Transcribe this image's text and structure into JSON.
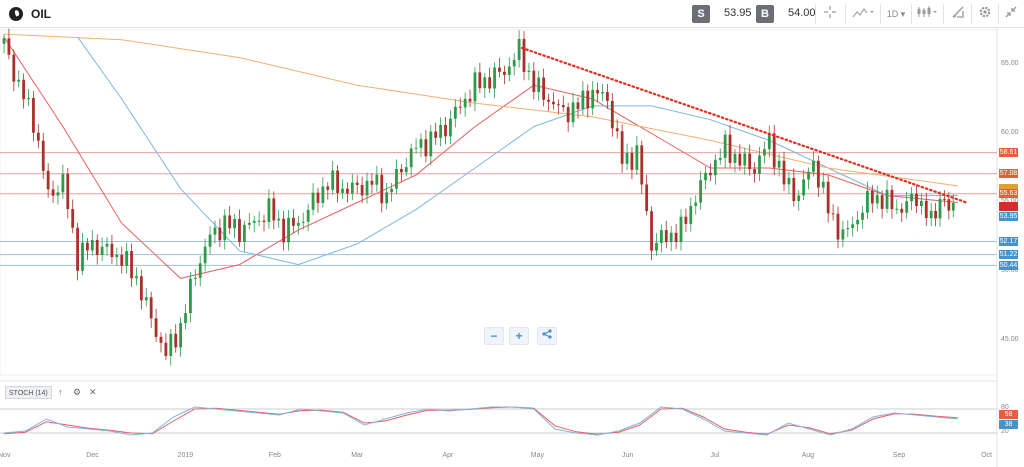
{
  "instrument": {
    "name": "OIL"
  },
  "toolbar": {
    "sell_label": "S",
    "sell_price": "53.95",
    "buy_label": "B",
    "buy_price": "54.00",
    "timeframe": "1D",
    "icons": [
      "crosshair-icon",
      "chart-type-icon",
      "timeframe-dropdown",
      "candlestick-icon",
      "drawing-tools-icon",
      "settings-icon",
      "collapse-icon"
    ]
  },
  "chart_data": {
    "type": "candlestick",
    "instrument": "OIL",
    "timeframe": "1D",
    "ylim": [
      42.5,
      67.5
    ],
    "y_ticks": [
      "65.00",
      "60.00",
      "55.00",
      "50.00",
      "45.00"
    ],
    "x_ticks": [
      "Nov",
      "Dec",
      "2019",
      "Feb",
      "Mar",
      "Apr",
      "May",
      "Jun",
      "Jul",
      "Aug",
      "Sep",
      "Oct"
    ],
    "x_tick_values": [
      0,
      30,
      61,
      92,
      120,
      151,
      181,
      212,
      242,
      273,
      304,
      334
    ],
    "current_price": 53.95,
    "horizontal_levels": [
      {
        "value": 58.61,
        "color": "#e8a0a0",
        "tag_color": "#e06040"
      },
      {
        "value": 57.08,
        "color": "#e8a0a0",
        "tag_color": "#e06040"
      },
      {
        "value": 55.63,
        "color": "#e8a0a0",
        "tag_color": "#e06040"
      },
      {
        "value": 52.17,
        "color": "#9fc3e0",
        "tag_color": "#4a90c9"
      },
      {
        "value": 51.22,
        "color": "#9fc3e0",
        "tag_color": "#4a90c9"
      },
      {
        "value": 50.44,
        "color": "#9fc3e0",
        "tag_color": "#4a90c9"
      }
    ],
    "price_tags": [
      {
        "value": 58.61,
        "label": "58.61",
        "color": "#e06040"
      },
      {
        "value": 57.08,
        "label": "57.08",
        "color": "#e06040"
      },
      {
        "value": 56.05,
        "label": "",
        "color": "#e0a030"
      },
      {
        "value": 55.63,
        "label": "55.63",
        "color": "#e06040"
      },
      {
        "value": 54.7,
        "label": "",
        "color": "#d0302a"
      },
      {
        "value": 53.95,
        "label": "53.95",
        "color": "#4a90c9"
      },
      {
        "value": 52.17,
        "label": "52.17",
        "color": "#4a90c9"
      },
      {
        "value": 51.22,
        "label": "51.22",
        "color": "#4a90c9"
      },
      {
        "value": 50.44,
        "label": "50.44",
        "color": "#4a90c9"
      }
    ],
    "trendline": {
      "from": {
        "x": 176,
        "y": 66.2
      },
      "to": {
        "x": 327,
        "y": 55.0
      },
      "color": "#e03020",
      "style": "dotted"
    },
    "candles_daily_close_approx": [
      {
        "x": 0,
        "y": 66.5
      },
      {
        "x": 5,
        "y": 63.5
      },
      {
        "x": 10,
        "y": 61.0
      },
      {
        "x": 15,
        "y": 55.5
      },
      {
        "x": 20,
        "y": 56.5
      },
      {
        "x": 25,
        "y": 51.0
      },
      {
        "x": 30,
        "y": 52.0
      },
      {
        "x": 35,
        "y": 51.5
      },
      {
        "x": 40,
        "y": 51.0
      },
      {
        "x": 45,
        "y": 49.5
      },
      {
        "x": 50,
        "y": 46.5
      },
      {
        "x": 55,
        "y": 44.0
      },
      {
        "x": 60,
        "y": 46.0
      },
      {
        "x": 65,
        "y": 50.0
      },
      {
        "x": 70,
        "y": 52.5
      },
      {
        "x": 75,
        "y": 53.5
      },
      {
        "x": 80,
        "y": 53.0
      },
      {
        "x": 85,
        "y": 53.5
      },
      {
        "x": 90,
        "y": 54.5
      },
      {
        "x": 95,
        "y": 53.0
      },
      {
        "x": 100,
        "y": 53.5
      },
      {
        "x": 105,
        "y": 55.0
      },
      {
        "x": 110,
        "y": 56.5
      },
      {
        "x": 115,
        "y": 56.0
      },
      {
        "x": 120,
        "y": 56.0
      },
      {
        "x": 125,
        "y": 56.5
      },
      {
        "x": 130,
        "y": 55.5
      },
      {
        "x": 135,
        "y": 57.5
      },
      {
        "x": 140,
        "y": 59.0
      },
      {
        "x": 145,
        "y": 59.5
      },
      {
        "x": 150,
        "y": 60.5
      },
      {
        "x": 155,
        "y": 62.0
      },
      {
        "x": 160,
        "y": 63.5
      },
      {
        "x": 165,
        "y": 64.0
      },
      {
        "x": 170,
        "y": 64.5
      },
      {
        "x": 175,
        "y": 66.0
      },
      {
        "x": 180,
        "y": 63.5
      },
      {
        "x": 185,
        "y": 62.5
      },
      {
        "x": 190,
        "y": 61.5
      },
      {
        "x": 195,
        "y": 62.0
      },
      {
        "x": 200,
        "y": 63.0
      },
      {
        "x": 205,
        "y": 62.5
      },
      {
        "x": 210,
        "y": 58.0
      },
      {
        "x": 215,
        "y": 58.5
      },
      {
        "x": 220,
        "y": 52.0
      },
      {
        "x": 225,
        "y": 52.5
      },
      {
        "x": 230,
        "y": 53.0
      },
      {
        "x": 235,
        "y": 55.5
      },
      {
        "x": 240,
        "y": 57.5
      },
      {
        "x": 245,
        "y": 59.0
      },
      {
        "x": 250,
        "y": 58.0
      },
      {
        "x": 255,
        "y": 57.5
      },
      {
        "x": 260,
        "y": 59.5
      },
      {
        "x": 265,
        "y": 56.5
      },
      {
        "x": 270,
        "y": 55.5
      },
      {
        "x": 275,
        "y": 58.0
      },
      {
        "x": 280,
        "y": 54.5
      },
      {
        "x": 285,
        "y": 52.5
      },
      {
        "x": 290,
        "y": 54.0
      },
      {
        "x": 295,
        "y": 55.5
      },
      {
        "x": 300,
        "y": 55.0
      },
      {
        "x": 305,
        "y": 54.5
      },
      {
        "x": 310,
        "y": 55.5
      },
      {
        "x": 315,
        "y": 53.5
      },
      {
        "x": 318,
        "y": 55.5
      },
      {
        "x": 321,
        "y": 54.5
      },
      {
        "x": 324,
        "y": 53.95
      }
    ],
    "series": [
      {
        "name": "",
        "color": "#e86060",
        "values_x": [
          0,
          20,
          40,
          60,
          80,
          100,
          120,
          140,
          160,
          180,
          200,
          220,
          240,
          260,
          280,
          300,
          324
        ],
        "values_y": [
          67,
          60.5,
          53.5,
          49.5,
          50.5,
          53.0,
          55.0,
          57.0,
          60.5,
          63.5,
          62.5,
          60.0,
          57.5,
          57.5,
          57.0,
          55.5,
          55.0
        ]
      },
      {
        "name": "",
        "color": "#7fb6e0",
        "values_x": [
          25,
          40,
          60,
          80,
          100,
          120,
          140,
          160,
          180,
          200,
          220,
          240,
          260,
          280,
          300,
          324
        ],
        "values_y": [
          67,
          62.5,
          56.0,
          51.5,
          50.5,
          52.0,
          54.5,
          57.5,
          60.5,
          62.0,
          62.0,
          61.0,
          59.5,
          57.5,
          55.5,
          55.5
        ]
      },
      {
        "name": "",
        "color": "#f0b070",
        "values_x": [
          0,
          40,
          80,
          120,
          160,
          200,
          240,
          280,
          324
        ],
        "values_y": [
          67.2,
          66.8,
          65.5,
          63.5,
          62.2,
          61.2,
          59.5,
          57.5,
          56.2
        ]
      }
    ]
  },
  "zoom_controls": {
    "zoom_out": "−",
    "zoom_in": "+",
    "share": "share"
  },
  "indicator": {
    "label": "STOCH (14)",
    "levels": [
      "80",
      "20"
    ],
    "tags": [
      {
        "label": "58",
        "color": "#e06040"
      },
      {
        "label": "38",
        "color": "#4a90c9"
      }
    ],
    "k_series": [
      20,
      25,
      55,
      35,
      30,
      25,
      15,
      20,
      60,
      85,
      80,
      75,
      70,
      65,
      80,
      75,
      70,
      40,
      55,
      70,
      80,
      75,
      80,
      85,
      85,
      80,
      30,
      20,
      15,
      25,
      45,
      85,
      80,
      55,
      25,
      20,
      15,
      45,
      30,
      15,
      30,
      60,
      70,
      65,
      60,
      55
    ],
    "d_series": [
      18,
      22,
      48,
      40,
      32,
      27,
      20,
      18,
      50,
      80,
      82,
      77,
      72,
      67,
      76,
      77,
      72,
      45,
      50,
      65,
      77,
      77,
      79,
      83,
      85,
      82,
      38,
      23,
      17,
      22,
      40,
      80,
      82,
      60,
      30,
      22,
      17,
      40,
      33,
      18,
      27,
      55,
      68,
      67,
      62,
      58
    ]
  }
}
